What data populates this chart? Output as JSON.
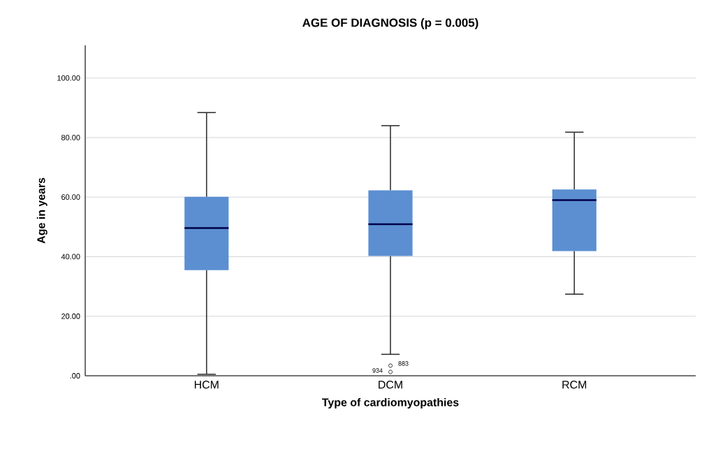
{
  "chart_data": {
    "type": "box",
    "title": "AGE OF DIAGNOSIS (p = 0.005)",
    "xlabel": "Type of cardiomyopathies",
    "ylabel": "Age in years",
    "categories": [
      "HCM",
      "DCM",
      "RCM"
    ],
    "boxes": [
      {
        "low": 0.5,
        "q1": 35.5,
        "median": 49.6,
        "q3": 60.1,
        "high": 88.4
      },
      {
        "low": 7.2,
        "q1": 40.2,
        "median": 50.9,
        "q3": 62.3,
        "high": 84.0,
        "outliers": [
          3.4,
          1.3
        ]
      },
      {
        "low": 27.4,
        "q1": 41.9,
        "median": 59.0,
        "q3": 62.6,
        "high": 81.8
      }
    ],
    "color": "#5b8fd1",
    "ylim": [
      0,
      111
    ],
    "yticks": [
      {
        "value": 0,
        "label": ".00"
      },
      {
        "value": 20,
        "label": "20.00"
      },
      {
        "value": 40,
        "label": "40.00"
      },
      {
        "value": 60,
        "label": "60.00"
      },
      {
        "value": 80,
        "label": "80.00"
      },
      {
        "value": 100,
        "label": "100.00"
      }
    ],
    "grid": "y",
    "annotations": [
      "883",
      "934"
    ]
  }
}
